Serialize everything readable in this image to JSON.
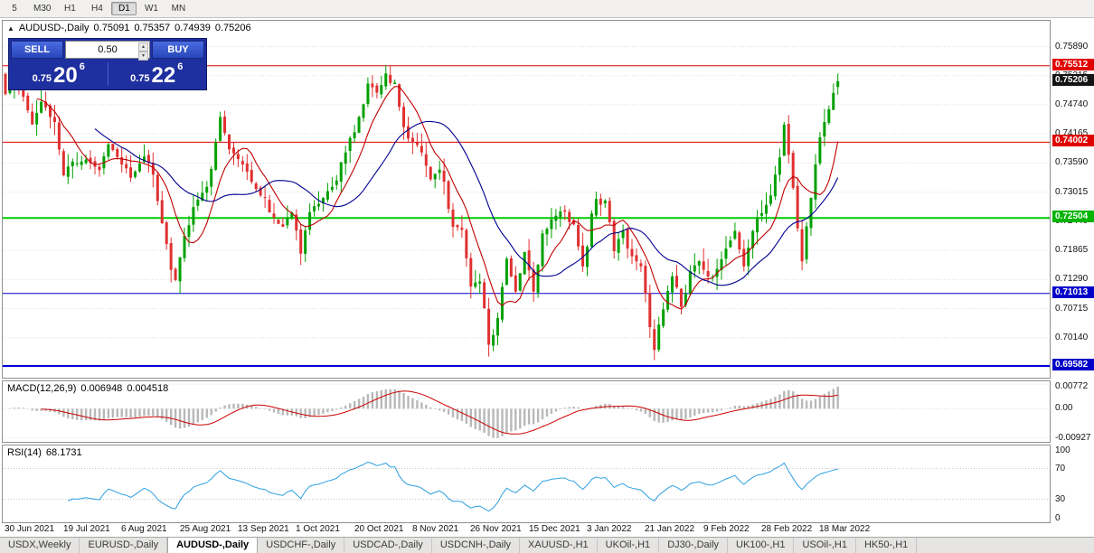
{
  "toolbar": {
    "timeframes": [
      {
        "label": "5",
        "active": false
      },
      {
        "label": "M30",
        "active": false
      },
      {
        "label": "H1",
        "active": false
      },
      {
        "label": "H4",
        "active": false
      },
      {
        "label": "D1",
        "active": true
      },
      {
        "label": "W1",
        "active": false
      },
      {
        "label": "MN",
        "active": false
      }
    ]
  },
  "chart": {
    "title": {
      "symbol": "AUDUSD-,Daily",
      "open": "0.75091",
      "high": "0.75357",
      "low": "0.74939",
      "close": "0.75206"
    },
    "trade_panel": {
      "sell_label": "SELL",
      "buy_label": "BUY",
      "volume": "0.50",
      "sell_price": {
        "prefix": "0.75",
        "big": "20",
        "sup": "6"
      },
      "buy_price": {
        "prefix": "0.75",
        "big": "22",
        "sup": "6"
      }
    },
    "price_scale": {
      "ticks": [
        {
          "text": "0.75890",
          "price": 0.7589
        },
        {
          "text": "0.75315",
          "price": 0.75315
        },
        {
          "text": "0.74740",
          "price": 0.7474
        },
        {
          "text": "0.74165",
          "price": 0.74165
        },
        {
          "text": "0.73590",
          "price": 0.7359
        },
        {
          "text": "0.73015",
          "price": 0.73015
        },
        {
          "text": "0.72440",
          "price": 0.7244
        },
        {
          "text": "0.71865",
          "price": 0.71865
        },
        {
          "text": "0.71290",
          "price": 0.7129
        },
        {
          "text": "0.70715",
          "price": 0.70715
        },
        {
          "text": "0.70140",
          "price": 0.7014
        },
        {
          "text": "0.69565",
          "price": 0.69565
        }
      ],
      "tags": [
        {
          "text": "0.75512",
          "price": 0.75512,
          "color": "#e00000"
        },
        {
          "text": "0.75206",
          "price": 0.75206,
          "color": "#141414"
        },
        {
          "text": "0.74002",
          "price": 0.74002,
          "color": "#e00000"
        },
        {
          "text": "0.72504",
          "price": 0.72504,
          "color": "#00b400"
        },
        {
          "text": "0.71013",
          "price": 0.71013,
          "color": "#0000c8"
        },
        {
          "text": "0.69582",
          "price": 0.69582,
          "color": "#0000c8"
        }
      ]
    },
    "macd_panel": {
      "label": "MACD(12,26,9)",
      "main_value": "0.006948",
      "signal_value": "0.004518",
      "scale": [
        {
          "text": "0.00772",
          "value": 0.00772
        },
        {
          "text": "0.00",
          "value": 0
        },
        {
          "text": "-0.00927",
          "value": -0.00927
        }
      ]
    },
    "rsi_panel": {
      "label": "RSI(14)",
      "value": "68.1731",
      "scale": [
        {
          "text": "100",
          "value": 100
        },
        {
          "text": "70",
          "value": 70
        },
        {
          "text": "30",
          "value": 30
        },
        {
          "text": "0",
          "value": 0
        }
      ]
    }
  },
  "chart_data": {
    "type": "candlestick",
    "symbol": "AUDUSD",
    "timeframe": "Daily",
    "last_ohlc": {
      "o": 0.75091,
      "h": 0.75357,
      "l": 0.74939,
      "c": 0.75206
    },
    "price_range": [
      0.6935,
      0.764
    ],
    "candles_count": 187,
    "x_step": 4.95,
    "label_every": 13,
    "seed": 11,
    "candle_up_color": "#00a000",
    "candle_down_color": "#e03030",
    "close_anchors": [
      [
        0,
        0.7495
      ],
      [
        2,
        0.7525
      ],
      [
        4,
        0.749
      ],
      [
        6,
        0.7435
      ],
      [
        8,
        0.748
      ],
      [
        11,
        0.744
      ],
      [
        13,
        0.7335
      ],
      [
        15,
        0.7362
      ],
      [
        18,
        0.7366
      ],
      [
        21,
        0.7345
      ],
      [
        23,
        0.7396
      ],
      [
        26,
        0.7356
      ],
      [
        28,
        0.733
      ],
      [
        31,
        0.7372
      ],
      [
        33,
        0.7336
      ],
      [
        35,
        0.724
      ],
      [
        37,
        0.7148
      ],
      [
        38,
        0.7128
      ],
      [
        40,
        0.7215
      ],
      [
        42,
        0.7272
      ],
      [
        45,
        0.7312
      ],
      [
        47,
        0.74
      ],
      [
        48,
        0.745
      ],
      [
        50,
        0.7386
      ],
      [
        53,
        0.7356
      ],
      [
        55,
        0.7322
      ],
      [
        57,
        0.7295
      ],
      [
        60,
        0.7251
      ],
      [
        62,
        0.7233
      ],
      [
        64,
        0.7261
      ],
      [
        66,
        0.718
      ],
      [
        67,
        0.7226
      ],
      [
        68,
        0.7262
      ],
      [
        71,
        0.729
      ],
      [
        73,
        0.7312
      ],
      [
        76,
        0.738
      ],
      [
        78,
        0.742
      ],
      [
        80,
        0.7475
      ],
      [
        81,
        0.7516
      ],
      [
        83,
        0.7498
      ],
      [
        85,
        0.7536
      ],
      [
        87,
        0.7518
      ],
      [
        89,
        0.743
      ],
      [
        91,
        0.74
      ],
      [
        93,
        0.738
      ],
      [
        95,
        0.7327
      ],
      [
        97,
        0.7346
      ],
      [
        100,
        0.7233
      ],
      [
        102,
        0.7227
      ],
      [
        104,
        0.7115
      ],
      [
        106,
        0.7125
      ],
      [
        108,
        0.7
      ],
      [
        110,
        0.7053
      ],
      [
        112,
        0.717
      ],
      [
        114,
        0.7105
      ],
      [
        116,
        0.7183
      ],
      [
        118,
        0.7105
      ],
      [
        120,
        0.722
      ],
      [
        123,
        0.7255
      ],
      [
        125,
        0.7263
      ],
      [
        127,
        0.7238
      ],
      [
        129,
        0.7155
      ],
      [
        132,
        0.7288
      ],
      [
        134,
        0.7285
      ],
      [
        136,
        0.7185
      ],
      [
        138,
        0.7225
      ],
      [
        140,
        0.7175
      ],
      [
        142,
        0.7155
      ],
      [
        144,
        0.7035
      ],
      [
        145,
        0.699
      ],
      [
        147,
        0.707
      ],
      [
        149,
        0.7135
      ],
      [
        151,
        0.7075
      ],
      [
        153,
        0.7145
      ],
      [
        155,
        0.7165
      ],
      [
        157,
        0.7135
      ],
      [
        159,
        0.715
      ],
      [
        161,
        0.719
      ],
      [
        163,
        0.7225
      ],
      [
        165,
        0.7155
      ],
      [
        167,
        0.7225
      ],
      [
        169,
        0.726
      ],
      [
        171,
        0.7295
      ],
      [
        173,
        0.737
      ],
      [
        174,
        0.7435
      ],
      [
        176,
        0.731
      ],
      [
        178,
        0.7165
      ],
      [
        180,
        0.729
      ],
      [
        182,
        0.741
      ],
      [
        184,
        0.7465
      ],
      [
        186,
        0.75206
      ]
    ],
    "levels": [
      {
        "price": 0.75512,
        "color": "#e00000",
        "width": 1
      },
      {
        "price": 0.74002,
        "color": "#e00000",
        "width": 1
      },
      {
        "price": 0.72504,
        "color": "#00cc00",
        "width": 2
      },
      {
        "price": 0.71013,
        "color": "#0000c8",
        "width": 1
      },
      {
        "price": 0.69582,
        "color": "#0000dc",
        "width": 2
      }
    ],
    "moving_averages": [
      {
        "period": 8,
        "color": "#c00000"
      },
      {
        "period": 21,
        "color": "#000090"
      }
    ],
    "macd": {
      "fast": 12,
      "slow": 26,
      "signal": 9,
      "range": [
        -0.0104,
        0.0086
      ],
      "hist_color": "#b8b8b8",
      "signal_color": "#cc0000"
    },
    "rsi": {
      "period": 14,
      "range": [
        0,
        100
      ],
      "levels": [
        70,
        30
      ],
      "color": "#2d9fe0"
    },
    "x_labels": [
      "30 Jun 2021",
      "19 Jul 2021",
      "6 Aug 2021",
      "25 Aug 2021",
      "13 Sep 2021",
      "1 Oct 2021",
      "20 Oct 2021",
      "8 Nov 2021",
      "26 Nov 2021",
      "15 Dec 2021",
      "3 Jan 2022",
      "21 Jan 2022",
      "9 Feb 2022",
      "28 Feb 2022",
      "18 Mar 2022"
    ]
  },
  "tabs": [
    {
      "label": "USDX,Weekly",
      "active": false
    },
    {
      "label": "EURUSD-,Daily",
      "active": false
    },
    {
      "label": "AUDUSD-,Daily",
      "active": true
    },
    {
      "label": "USDCHF-,Daily",
      "active": false
    },
    {
      "label": "USDCAD-,Daily",
      "active": false
    },
    {
      "label": "USDCNH-,Daily",
      "active": false
    },
    {
      "label": "XAUUSD-,H1",
      "active": false
    },
    {
      "label": "UKOil-,H1",
      "active": false
    },
    {
      "label": "DJ30-,Daily",
      "active": false
    },
    {
      "label": "UK100-,H1",
      "active": false
    },
    {
      "label": "USOil-,H1",
      "active": false
    },
    {
      "label": "HK50-,H1",
      "active": false
    }
  ]
}
